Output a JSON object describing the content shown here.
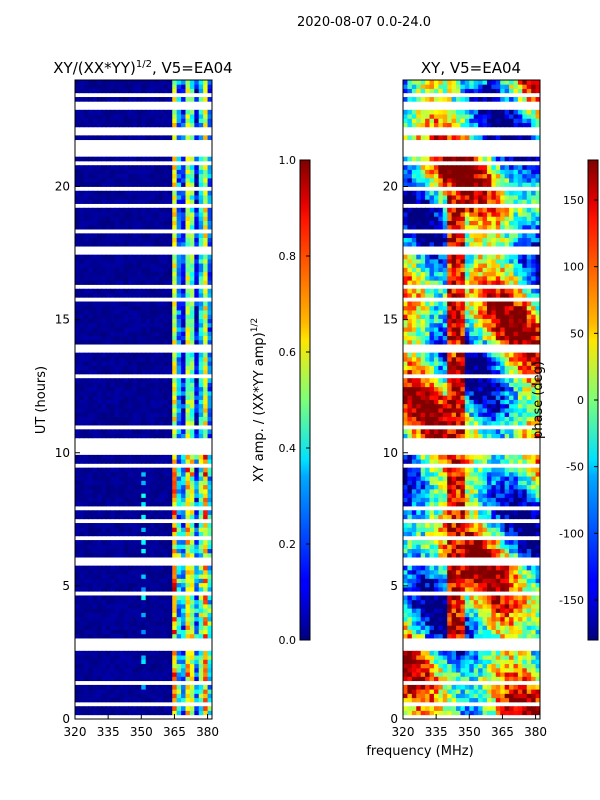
{
  "figure": {
    "suptitle": "2020-08-07 0.0-24.0",
    "shared_xlabel": "frequency (MHz)"
  },
  "chart_data": [
    {
      "type": "heatmap",
      "title": "XY/(XX*YY)",
      "title_sup": "1/2",
      "title_suffix": ", V5=EA04",
      "xlabel": "",
      "ylabel": "UT (hours)",
      "xlim": [
        320,
        382
      ],
      "ylim": [
        0,
        24
      ],
      "xticks": [
        "320",
        "335",
        "350",
        "365",
        "380"
      ],
      "yticks": [
        "0",
        "5",
        "10",
        "15",
        "20"
      ],
      "colormap": "jet",
      "colorbar": {
        "label": "XY amp. / (XX*YY amp)",
        "label_sup": "1/2",
        "min": 0.0,
        "max": 1.0,
        "ticks": [
          "0.0",
          "0.2",
          "0.4",
          "0.6",
          "0.8",
          "1.0"
        ]
      },
      "notes": "Low amplitude (~0) below 364 MHz; bright bands (0.3-0.9) from 364-381 MHz; missing time rows shown as white gaps"
    },
    {
      "type": "heatmap",
      "title": "XY, V5=EA04",
      "xlabel": "",
      "ylabel": "",
      "xlim": [
        320,
        382
      ],
      "ylim": [
        0,
        24
      ],
      "xticks": [
        "320",
        "335",
        "350",
        "365",
        "380"
      ],
      "yticks": [
        "0",
        "5",
        "10",
        "15",
        "20"
      ],
      "colormap": "jet",
      "colorbar": {
        "label": "phase (deg)",
        "min": -180,
        "max": 180,
        "ticks": [
          "-150",
          "-100",
          "-50",
          "0",
          "50",
          "100",
          "150"
        ]
      },
      "notes": "Phase varies strongly; red/orange (~+150) and blue (~-150) bands; vertical red stripe near 340-347 MHz"
    }
  ],
  "colors": {
    "jet_low": "#00007f",
    "jet_high": "#7f0000",
    "gap": "#ffffff"
  }
}
